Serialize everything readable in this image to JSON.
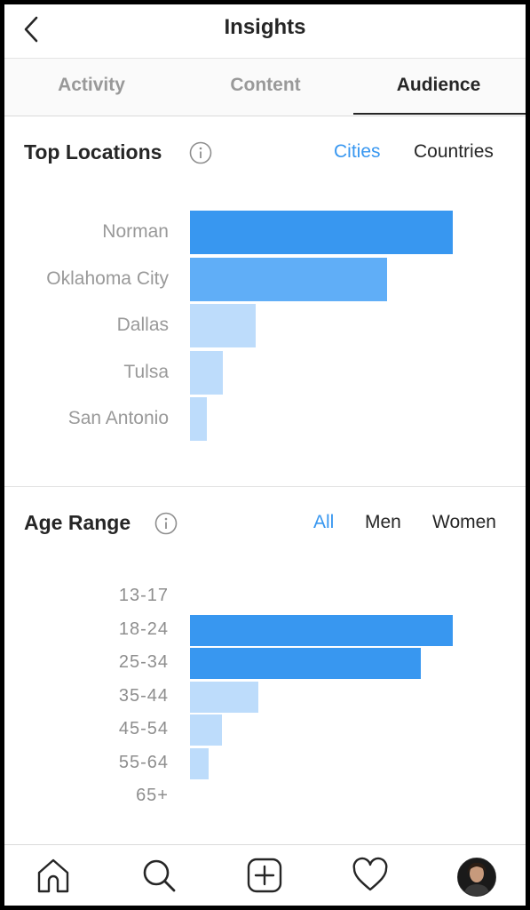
{
  "header": {
    "title": "Insights"
  },
  "tabs": [
    {
      "label": "Activity",
      "active": false
    },
    {
      "label": "Content",
      "active": false
    },
    {
      "label": "Audience",
      "active": true
    }
  ],
  "top_locations": {
    "title": "Top Locations",
    "filters": [
      {
        "label": "Cities",
        "active": true
      },
      {
        "label": "Countries",
        "active": false
      }
    ]
  },
  "age_range": {
    "title": "Age Range",
    "filters": [
      {
        "label": "All",
        "active": true
      },
      {
        "label": "Men",
        "active": false
      },
      {
        "label": "Women",
        "active": false
      }
    ]
  },
  "bottom_nav": [
    "home-icon",
    "search-icon",
    "new-post-icon",
    "activity-heart-icon",
    "profile-avatar"
  ],
  "colors": {
    "accent": "#3897f0",
    "bar_dark": "#3897f0",
    "bar_mid": "#60aef7",
    "bar_light": "#bddcfb"
  },
  "chart_data": [
    {
      "type": "bar",
      "orientation": "horizontal",
      "categories": [
        "Norman",
        "Oklahoma City",
        "Dallas",
        "Tulsa",
        "San Antonio"
      ],
      "values": [
        100,
        75,
        25,
        12.5,
        6.5
      ],
      "xlim": [
        0,
        100
      ]
    },
    {
      "type": "bar",
      "orientation": "horizontal",
      "categories": [
        "13-17",
        "18-24",
        "25-34",
        "35-44",
        "45-54",
        "55-64",
        "65+"
      ],
      "values": [
        0,
        100,
        88,
        26,
        12,
        7,
        0
      ],
      "xlim": [
        0,
        100
      ]
    }
  ]
}
